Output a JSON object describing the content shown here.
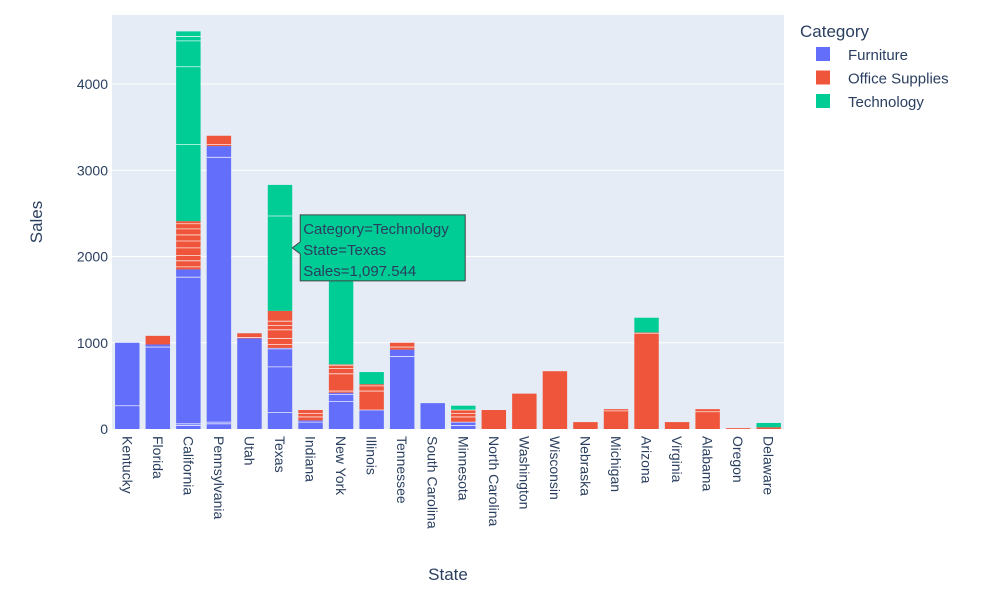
{
  "chart_data": {
    "type": "bar",
    "barmode": "stack",
    "xlabel": "State",
    "ylabel": "Sales",
    "ylim": [
      0,
      4800
    ],
    "yticks": [
      0,
      1000,
      2000,
      3000,
      4000
    ],
    "categories": [
      "Kentucky",
      "Florida",
      "California",
      "Pennsylvania",
      "Utah",
      "Texas",
      "Indiana",
      "New York",
      "Illinois",
      "Tennessee",
      "South Carolina",
      "Minnesota",
      "North Carolina",
      "Washington",
      "Wisconsin",
      "Nebraska",
      "Michigan",
      "Arizona",
      "Virginia",
      "Alabama",
      "Oregon",
      "Delaware"
    ],
    "legend": {
      "title": "Category",
      "placement": "top-right"
    },
    "series": [
      {
        "name": "Furniture",
        "color": "#636efa",
        "values": [
          1000,
          980,
          1850,
          3280,
          1050,
          940,
          100,
          420,
          220,
          920,
          300,
          80,
          0,
          0,
          0,
          0,
          0,
          0,
          0,
          0,
          0,
          0
        ]
      },
      {
        "name": "Office Supplies",
        "color": "#ef553b",
        "values": [
          0,
          100,
          560,
          120,
          60,
          430,
          120,
          330,
          300,
          80,
          0,
          140,
          220,
          410,
          670,
          80,
          230,
          1120,
          80,
          230,
          10,
          20
        ]
      },
      {
        "name": "Technology",
        "color": "#00cc96",
        "values": [
          0,
          0,
          2200,
          0,
          0,
          1460,
          0,
          1060,
          140,
          0,
          0,
          50,
          0,
          0,
          0,
          0,
          0,
          170,
          0,
          0,
          0,
          50
        ]
      }
    ],
    "segment_lines": {
      "Kentucky": [
        270
      ],
      "Florida": [
        950
      ],
      "California": [
        40,
        60,
        1760,
        1880,
        1950,
        2010,
        2100,
        2180,
        2250,
        2320,
        2380,
        3300,
        4200,
        4500,
        4550
      ],
      "Pennsylvania": [
        60,
        80,
        3150,
        3300
      ],
      "Utah": [
        1060
      ],
      "Texas": [
        190,
        720,
        930,
        980,
        1050,
        1150,
        1200,
        1250,
        2470
      ],
      "Indiana": [
        80,
        140,
        180
      ],
      "New York": [
        320,
        400,
        440,
        640,
        700,
        740,
        1780
      ],
      "Illinois": [
        220,
        440,
        500
      ],
      "Tennessee": [
        840,
        950
      ],
      "Minnesota": [
        40,
        80,
        140,
        180,
        220
      ],
      "Michigan": [
        210
      ],
      "Arizona": [
        1110
      ],
      "Alabama": [
        200
      ]
    },
    "hover": {
      "category_index": 5,
      "series_index": 2,
      "lines": [
        "Category=Technology",
        "State=Texas",
        "Sales=1,097.544"
      ]
    }
  }
}
